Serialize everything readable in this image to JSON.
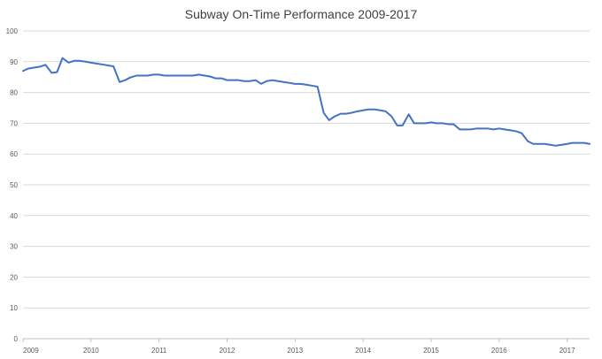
{
  "chart_data": {
    "type": "line",
    "title": "Subway On-Time Performance 2009-2017",
    "xlabel": "",
    "ylabel": "",
    "ylim": [
      0,
      100
    ],
    "yticks": [
      0,
      10,
      20,
      30,
      40,
      50,
      60,
      70,
      80,
      90,
      100
    ],
    "xticks": [
      "2009",
      "2010",
      "2011",
      "2012",
      "2013",
      "2014",
      "2015",
      "2016",
      "2017"
    ],
    "xlim": [
      2009.0,
      2017.33
    ],
    "grid": true,
    "legend": "none",
    "colors": {
      "series": "#4472c4",
      "grid": "#d9d9d9",
      "axis": "#bfbfbf",
      "title": "#404040",
      "tick": "#595959"
    },
    "series": [
      {
        "points": [
          [
            2009.0,
            87.0
          ],
          [
            2009.08,
            87.8
          ],
          [
            2009.17,
            88.1
          ],
          [
            2009.25,
            88.4
          ],
          [
            2009.33,
            89.0
          ],
          [
            2009.42,
            86.4
          ],
          [
            2009.5,
            86.6
          ],
          [
            2009.58,
            91.2
          ],
          [
            2009.67,
            89.7
          ],
          [
            2009.75,
            90.3
          ],
          [
            2009.83,
            90.3
          ],
          [
            2009.92,
            90.0
          ],
          [
            2010.0,
            89.7
          ],
          [
            2010.08,
            89.4
          ],
          [
            2010.17,
            89.1
          ],
          [
            2010.25,
            88.8
          ],
          [
            2010.33,
            88.5
          ],
          [
            2010.42,
            83.4
          ],
          [
            2010.5,
            84.0
          ],
          [
            2010.58,
            84.9
          ],
          [
            2010.67,
            85.5
          ],
          [
            2010.75,
            85.5
          ],
          [
            2010.83,
            85.5
          ],
          [
            2010.92,
            85.8
          ],
          [
            2011.0,
            85.8
          ],
          [
            2011.08,
            85.5
          ],
          [
            2011.17,
            85.5
          ],
          [
            2011.25,
            85.5
          ],
          [
            2011.33,
            85.5
          ],
          [
            2011.42,
            85.5
          ],
          [
            2011.5,
            85.5
          ],
          [
            2011.58,
            85.8
          ],
          [
            2011.67,
            85.5
          ],
          [
            2011.75,
            85.2
          ],
          [
            2011.83,
            84.6
          ],
          [
            2011.92,
            84.6
          ],
          [
            2012.0,
            84.0
          ],
          [
            2012.08,
            84.0
          ],
          [
            2012.17,
            84.0
          ],
          [
            2012.25,
            83.7
          ],
          [
            2012.33,
            83.7
          ],
          [
            2012.42,
            84.0
          ],
          [
            2012.5,
            82.8
          ],
          [
            2012.58,
            83.7
          ],
          [
            2012.67,
            84.0
          ],
          [
            2012.75,
            83.7
          ],
          [
            2012.83,
            83.4
          ],
          [
            2012.92,
            83.1
          ],
          [
            2013.0,
            82.8
          ],
          [
            2013.08,
            82.8
          ],
          [
            2013.17,
            82.5
          ],
          [
            2013.25,
            82.2
          ],
          [
            2013.33,
            81.9
          ],
          [
            2013.42,
            73.4
          ],
          [
            2013.5,
            71.0
          ],
          [
            2013.58,
            72.2
          ],
          [
            2013.67,
            73.1
          ],
          [
            2013.75,
            73.1
          ],
          [
            2013.83,
            73.4
          ],
          [
            2013.92,
            73.9
          ],
          [
            2014.0,
            74.2
          ],
          [
            2014.08,
            74.5
          ],
          [
            2014.17,
            74.5
          ],
          [
            2014.25,
            74.2
          ],
          [
            2014.33,
            73.9
          ],
          [
            2014.42,
            72.2
          ],
          [
            2014.5,
            69.3
          ],
          [
            2014.58,
            69.3
          ],
          [
            2014.67,
            72.9
          ],
          [
            2014.75,
            70.0
          ],
          [
            2014.83,
            70.0
          ],
          [
            2014.92,
            70.0
          ],
          [
            2015.0,
            70.3
          ],
          [
            2015.08,
            70.0
          ],
          [
            2015.17,
            70.0
          ],
          [
            2015.25,
            69.7
          ],
          [
            2015.33,
            69.7
          ],
          [
            2015.42,
            68.0
          ],
          [
            2015.5,
            68.0
          ],
          [
            2015.58,
            68.0
          ],
          [
            2015.67,
            68.3
          ],
          [
            2015.75,
            68.3
          ],
          [
            2015.83,
            68.3
          ],
          [
            2015.92,
            68.0
          ],
          [
            2016.0,
            68.3
          ],
          [
            2016.08,
            68.0
          ],
          [
            2016.17,
            67.7
          ],
          [
            2016.25,
            67.4
          ],
          [
            2016.33,
            66.8
          ],
          [
            2016.42,
            64.2
          ],
          [
            2016.5,
            63.3
          ],
          [
            2016.58,
            63.3
          ],
          [
            2016.67,
            63.3
          ],
          [
            2016.75,
            63.0
          ],
          [
            2016.83,
            62.7
          ],
          [
            2016.92,
            63.0
          ],
          [
            2017.0,
            63.3
          ],
          [
            2017.08,
            63.6
          ],
          [
            2017.17,
            63.6
          ],
          [
            2017.25,
            63.6
          ],
          [
            2017.33,
            63.3
          ]
        ]
      }
    ]
  }
}
